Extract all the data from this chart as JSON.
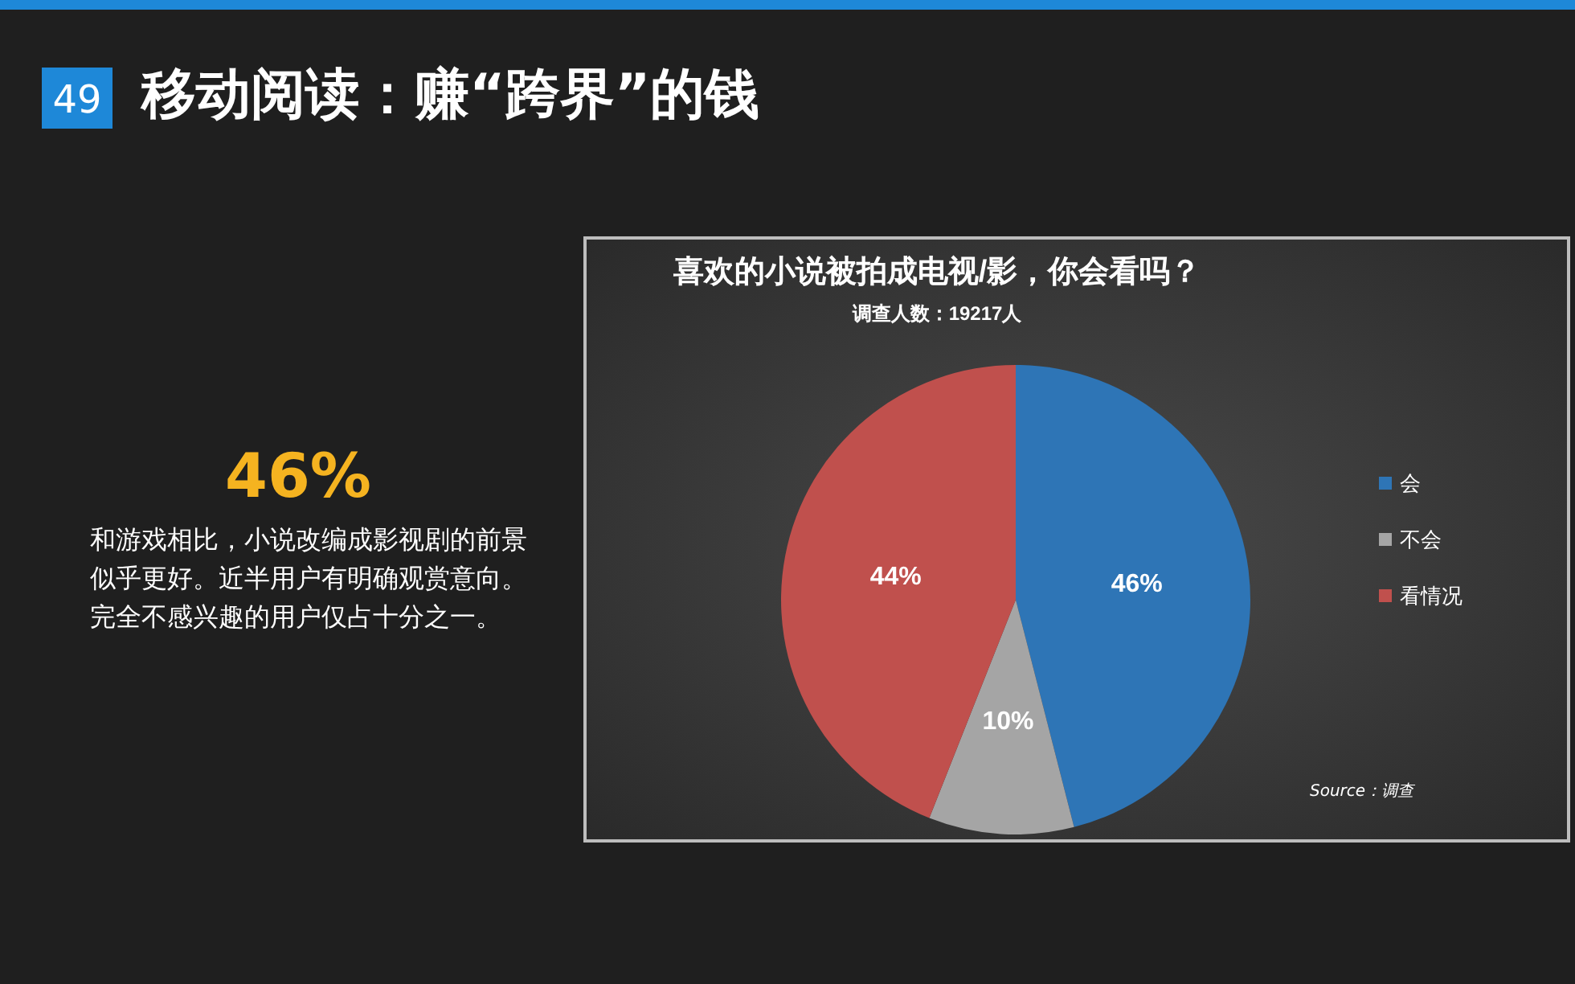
{
  "chart_data": {
    "type": "pie",
    "title": "喜欢的小说被拍成电视/影，你会看吗？",
    "subtitle": "调查人数：19217人",
    "categories": [
      "会",
      "不会",
      "看情况"
    ],
    "values": [
      46,
      10,
      44
    ],
    "colors": [
      "#2e75b6",
      "#a5a5a5",
      "#c0504d"
    ],
    "value_labels": [
      "46%",
      "10%",
      "44%"
    ],
    "legend": "right",
    "annotations": [
      "49",
      "移动阅读：赚“跨界”的钱",
      "46%",
      "和游戏相比，小说改编成影视剧的前景似乎更好。近半用户有明确观赏意向。完全不感兴趣的用户仅占十分之一。",
      "Source：调查"
    ]
  }
}
